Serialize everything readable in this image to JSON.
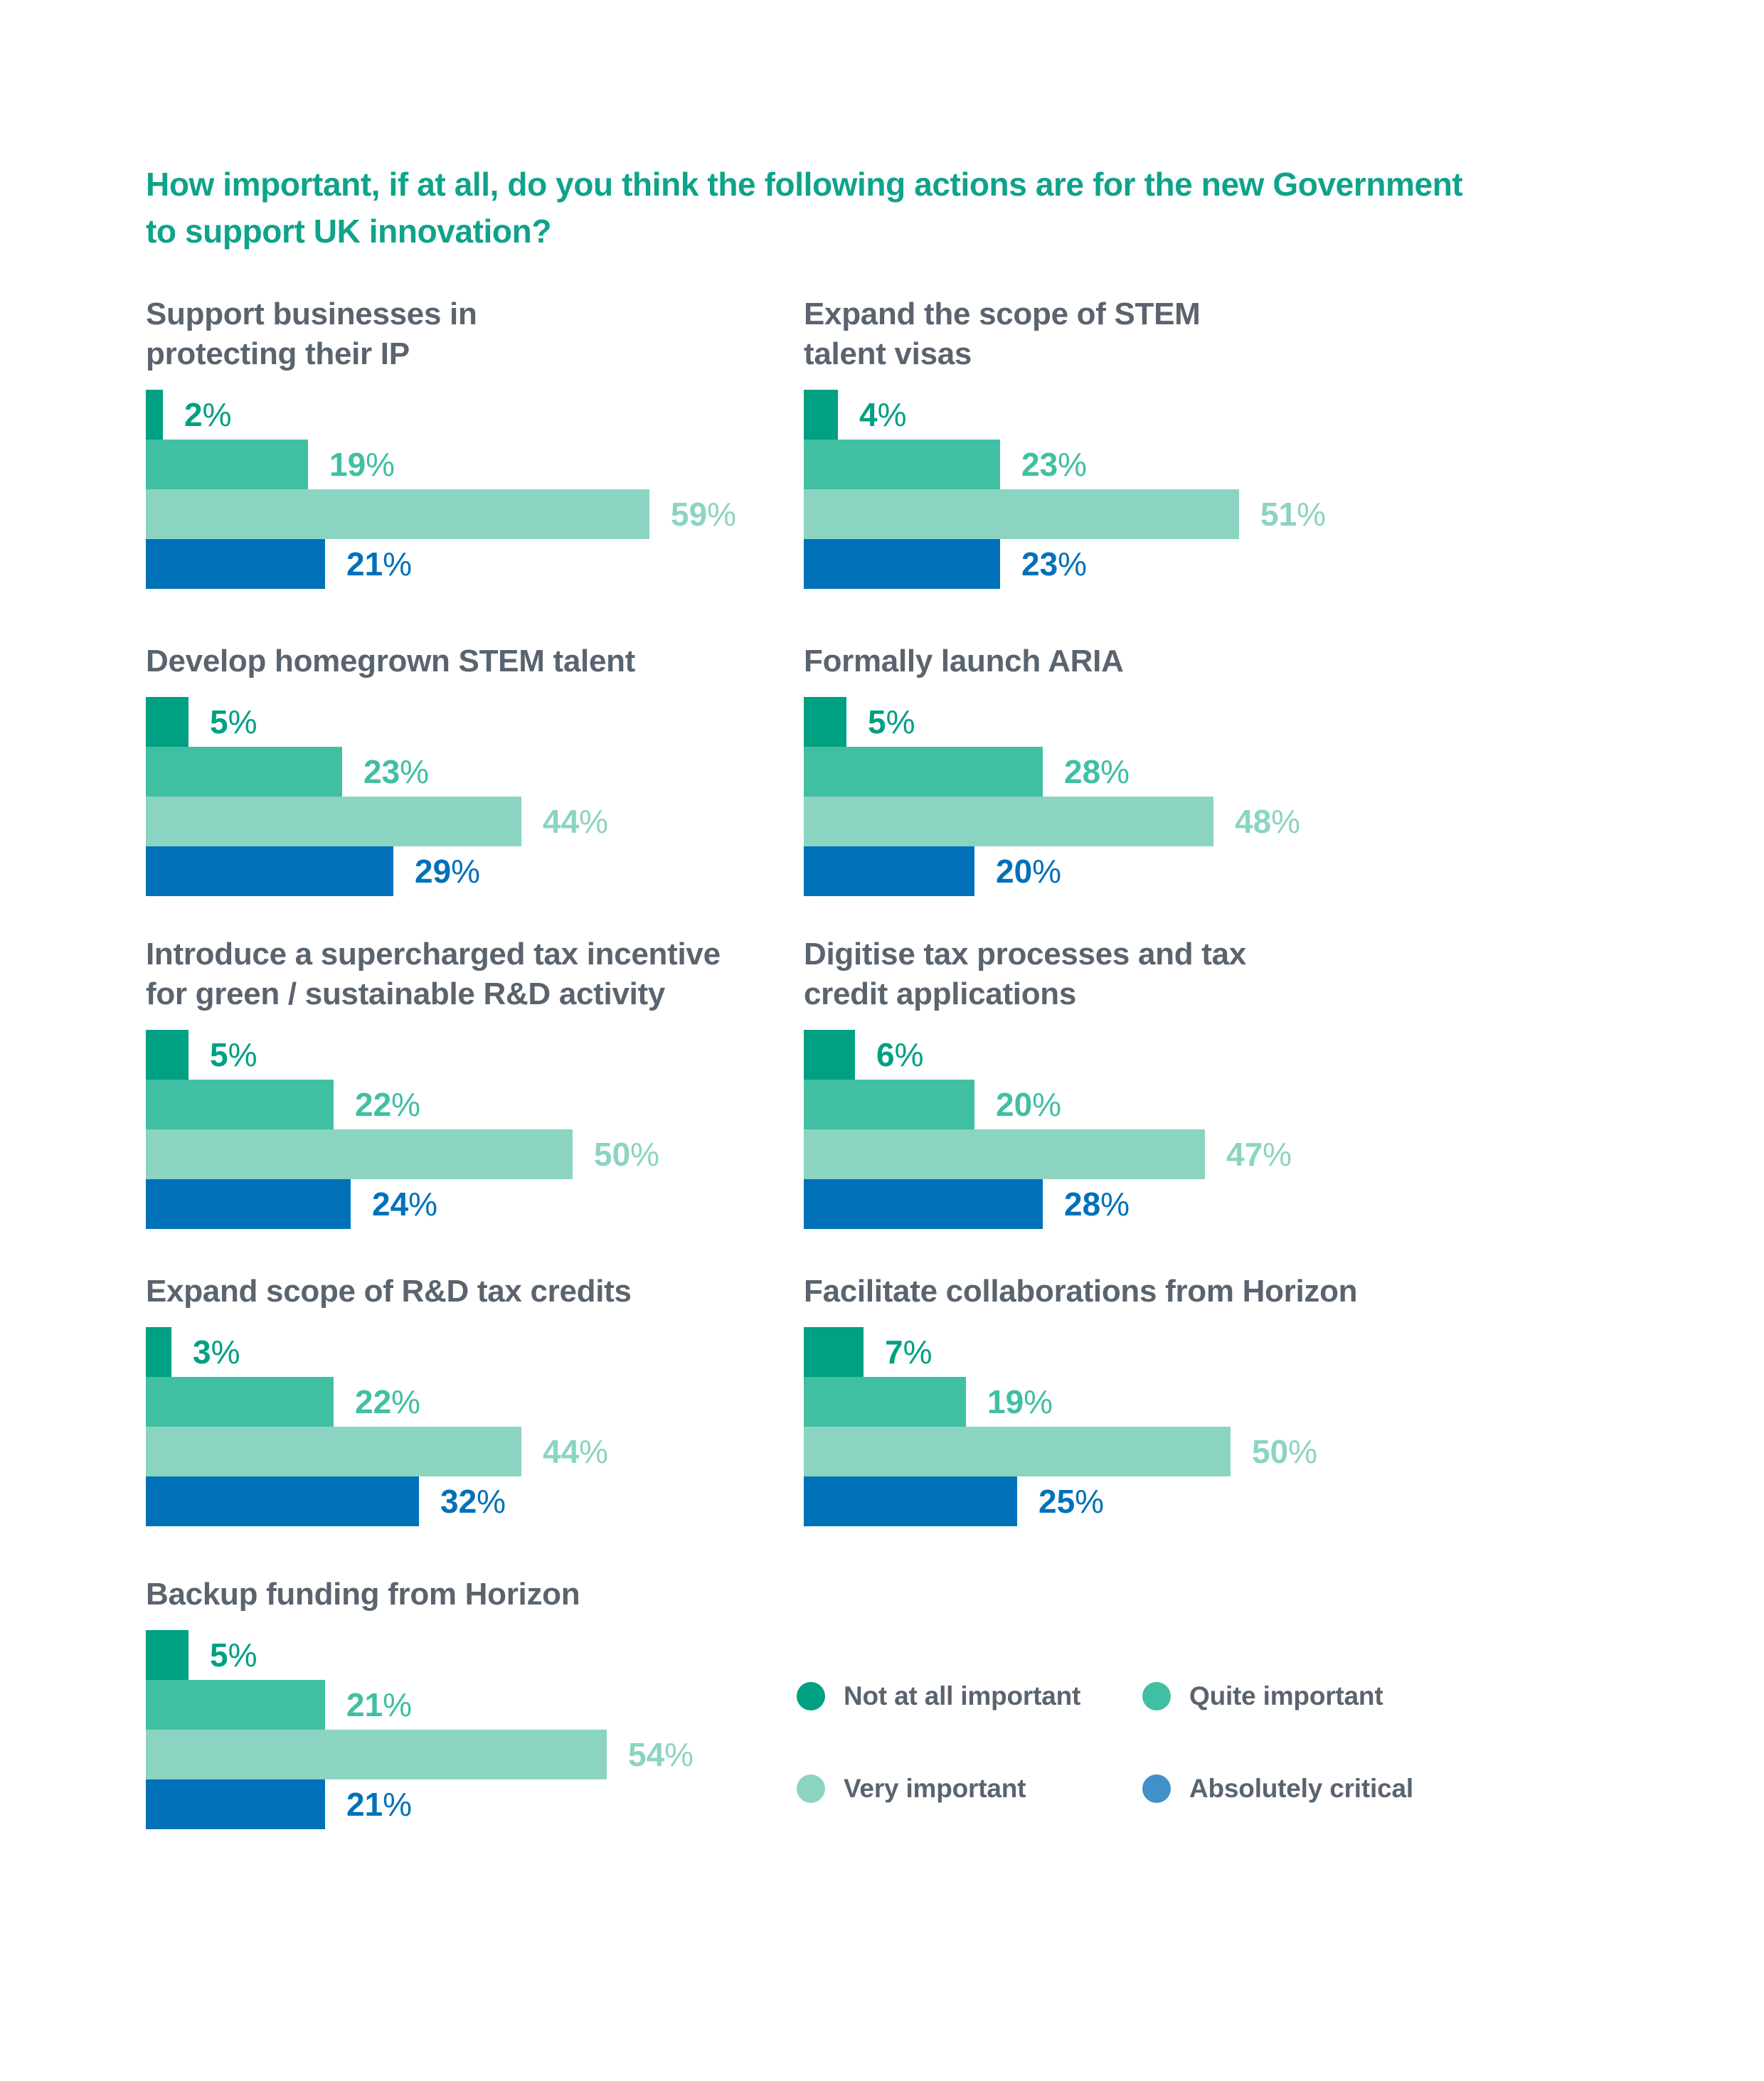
{
  "page": {
    "background": "#ffffff"
  },
  "main_title": {
    "lines": [
      "How important, if at all, do you think the following actions are for the new Government",
      "to support UK innovation?"
    ],
    "color": "#0ea38a"
  },
  "text_colors": {
    "chart_title": "#5a646f",
    "legend_label": "#5a646f"
  },
  "chart_data": {
    "type": "bar",
    "orientation": "horizontal",
    "value_unit": "%",
    "x_range": [
      0,
      100
    ],
    "grid": false,
    "series": [
      "Not at all important",
      "Quite important",
      "Very important",
      "Absolutely critical"
    ],
    "series_colors": [
      "#00a083",
      "#40bfa3",
      "#8cd4c2",
      "#0071b9"
    ],
    "charts": [
      {
        "title_lines": [
          "Support businesses in",
          "protecting their IP"
        ],
        "values": [
          2,
          19,
          59,
          21
        ]
      },
      {
        "title_lines": [
          "Expand the scope of STEM",
          "talent visas"
        ],
        "values": [
          4,
          23,
          51,
          23
        ]
      },
      {
        "title_lines": [
          "Develop homegrown STEM talent"
        ],
        "values": [
          5,
          23,
          44,
          29
        ]
      },
      {
        "title_lines": [
          "Formally launch ARIA"
        ],
        "values": [
          5,
          28,
          48,
          20
        ]
      },
      {
        "title_lines": [
          "Introduce a supercharged tax incentive",
          "for green / sustainable R&D activity"
        ],
        "values": [
          5,
          22,
          50,
          24
        ]
      },
      {
        "title_lines": [
          "Digitise tax processes and tax",
          "credit applications"
        ],
        "values": [
          6,
          20,
          47,
          28
        ]
      },
      {
        "title_lines": [
          "Expand scope of R&D tax credits"
        ],
        "values": [
          3,
          22,
          44,
          32
        ]
      },
      {
        "title_lines": [
          "Facilitate collaborations from Horizon"
        ],
        "values": [
          7,
          19,
          50,
          25
        ]
      },
      {
        "title_lines": [
          "Backup funding from Horizon"
        ],
        "values": [
          5,
          21,
          54,
          21
        ]
      }
    ]
  },
  "legend": {
    "items": [
      {
        "label": "Not at all important",
        "color": "#00a083"
      },
      {
        "label": "Quite important",
        "color": "#40bfa3"
      },
      {
        "label": "Very important",
        "color": "#8cd4c2"
      },
      {
        "label": "Absolutely critical",
        "color": "#4190c8"
      }
    ]
  }
}
